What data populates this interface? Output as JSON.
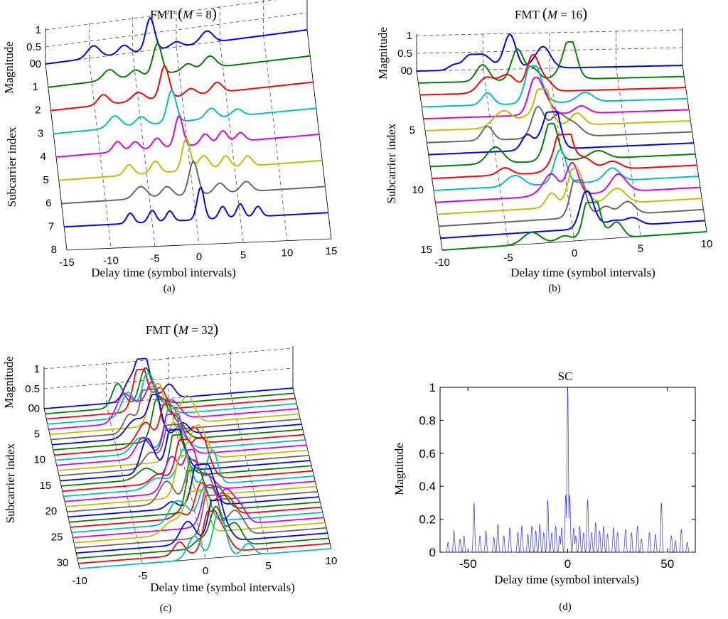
{
  "chart_data": [
    {
      "id": "a",
      "type": "waterfall",
      "title_prefix": "FMT",
      "title_var": "M",
      "title_value": "8",
      "xlabel": "Delay time (symbol intervals)",
      "ylabel": "Subcarrier index",
      "zlabel": "Magnitude",
      "caption": "(a)",
      "xlim": [
        -15,
        15
      ],
      "xticks": [
        "-15",
        "-10",
        "-5",
        "0",
        "5",
        "10",
        "15"
      ],
      "yticks": [
        "0",
        "1",
        "2",
        "3",
        "4",
        "5",
        "6",
        "7",
        "8"
      ],
      "zticks": [
        "1",
        "0.5",
        "0"
      ],
      "series": [
        {
          "name": "0",
          "color": "#0000ff",
          "peaks": [
            [
              -3,
              0.95,
              0.5
            ],
            [
              -9.5,
              0.35,
              0.7
            ],
            [
              -6,
              0.25,
              0.6
            ],
            [
              3.5,
              0.35,
              0.7
            ],
            [
              0,
              0.15,
              0.6
            ]
          ]
        },
        {
          "name": "1",
          "color": "#008000",
          "peaks": [
            [
              -2.5,
              0.9,
              0.5
            ],
            [
              -8,
              0.3,
              0.7
            ],
            [
              3.5,
              0.35,
              0.7
            ],
            [
              -5,
              0.2,
              0.6
            ],
            [
              1,
              0.2,
              0.6
            ]
          ]
        },
        {
          "name": "2",
          "color": "#ff0000",
          "peaks": [
            [
              -2,
              0.95,
              0.5
            ],
            [
              -9,
              0.3,
              0.6
            ],
            [
              -5,
              0.25,
              0.7
            ],
            [
              4,
              0.3,
              0.6
            ],
            [
              1,
              0.2,
              0.6
            ]
          ]
        },
        {
          "name": "3",
          "color": "#00bfbf",
          "peaks": [
            [
              -1.5,
              0.95,
              0.5
            ],
            [
              -8,
              0.35,
              0.7
            ],
            [
              -5,
              0.25,
              0.6
            ],
            [
              3,
              0.3,
              0.6
            ],
            [
              6,
              0.2,
              0.6
            ]
          ]
        },
        {
          "name": "4",
          "color": "#dd00dd",
          "peaks": [
            [
              -1,
              0.9,
              0.45
            ],
            [
              -8,
              0.3,
              0.5
            ],
            [
              -6,
              0.25,
              0.5
            ],
            [
              -3.5,
              0.3,
              0.5
            ],
            [
              2,
              0.3,
              0.5
            ],
            [
              4,
              0.35,
              0.5
            ],
            [
              6,
              0.25,
              0.5
            ]
          ]
        },
        {
          "name": "5",
          "color": "#bfbf00",
          "peaks": [
            [
              -0.5,
              0.95,
              0.45
            ],
            [
              -7,
              0.3,
              0.5
            ],
            [
              -4,
              0.35,
              0.5
            ],
            [
              1.5,
              0.4,
              0.6
            ],
            [
              4,
              0.35,
              0.5
            ],
            [
              6.5,
              0.3,
              0.5
            ]
          ]
        },
        {
          "name": "6",
          "color": "#666666",
          "peaks": [
            [
              0,
              1.0,
              0.5
            ],
            [
              -6,
              0.35,
              0.7
            ],
            [
              -3,
              0.3,
              0.6
            ],
            [
              3,
              0.3,
              0.6
            ],
            [
              6,
              0.3,
              0.6
            ]
          ]
        },
        {
          "name": "7",
          "color": "#0000ff",
          "peaks": [
            [
              0.5,
              0.95,
              0.4
            ],
            [
              -7.5,
              0.3,
              0.4
            ],
            [
              -5,
              0.35,
              0.4
            ],
            [
              -3,
              0.3,
              0.4
            ],
            [
              3,
              0.35,
              0.4
            ],
            [
              5,
              0.4,
              0.4
            ],
            [
              7,
              0.3,
              0.4
            ]
          ]
        }
      ]
    },
    {
      "id": "b",
      "type": "waterfall",
      "title_prefix": "FMT",
      "title_var": "M",
      "title_value": "16",
      "xlabel": "Delay time (symbol intervals)",
      "ylabel": "Subcarrier index",
      "zlabel": "Magnitude",
      "caption": "(b)",
      "xlim": [
        -10,
        10
      ],
      "xticks": [
        "-10",
        "-5",
        "0",
        "5",
        "10"
      ],
      "yticks": [
        "0",
        "5",
        "10",
        "15"
      ],
      "zticks": [
        "1",
        "0.5",
        "0"
      ],
      "colors": [
        "#0000ff",
        "#008000",
        "#ff0000",
        "#00bfbf",
        "#dd00dd",
        "#bfbf00",
        "#666666"
      ],
      "rows": 16
    },
    {
      "id": "c",
      "type": "waterfall",
      "title_prefix": "FMT",
      "title_var": "M",
      "title_value": "32",
      "xlabel": "Delay time (symbol intervals)",
      "ylabel": "Subcarrier index",
      "zlabel": "Magnitude",
      "caption": "(c)",
      "xlim": [
        -10,
        10
      ],
      "xticks": [
        "-10",
        "-5",
        "0",
        "5",
        "10"
      ],
      "yticks": [
        "0",
        "5",
        "10",
        "15",
        "20",
        "25",
        "30"
      ],
      "zticks": [
        "1",
        "0.5",
        "0"
      ],
      "colors": [
        "#0000ff",
        "#008000",
        "#ff0000",
        "#00bfbf",
        "#dd00dd",
        "#bfbf00",
        "#666666"
      ],
      "rows": 32
    },
    {
      "id": "d",
      "type": "line",
      "title": "SC",
      "xlabel": "Delay time (symbol intervals)",
      "ylabel": "Magnitude",
      "caption": "(d)",
      "xlim": [
        -64,
        64
      ],
      "ylim": [
        0,
        1
      ],
      "xticks": [
        "-50",
        "0",
        "50"
      ],
      "yticks": [
        "0",
        "0.2",
        "0.4",
        "0.6",
        "0.8",
        "1"
      ],
      "line_color": "#4444ff",
      "spikes": [
        [
          0,
          1.0
        ],
        [
          -1,
          0.35
        ],
        [
          1,
          0.35
        ],
        [
          -10,
          0.32
        ],
        [
          10,
          0.32
        ],
        [
          -47,
          0.3
        ],
        [
          47,
          0.3
        ],
        [
          -57,
          0.13
        ],
        [
          57,
          0.14
        ],
        [
          -35,
          0.17
        ],
        [
          35,
          0.16
        ],
        [
          -29,
          0.15
        ],
        [
          29,
          0.14
        ],
        [
          -23,
          0.16
        ],
        [
          23,
          0.15
        ],
        [
          -18,
          0.16
        ],
        [
          18,
          0.16
        ],
        [
          -14,
          0.17
        ],
        [
          14,
          0.18
        ],
        [
          -6,
          0.16
        ],
        [
          6,
          0.16
        ],
        [
          -3,
          0.15
        ],
        [
          3,
          0.15
        ],
        [
          -41,
          0.13
        ],
        [
          41,
          0.12
        ],
        [
          -52,
          0.1
        ],
        [
          52,
          0.1
        ],
        [
          -60,
          0.06
        ],
        [
          60,
          0.06
        ],
        [
          -25,
          0.12
        ],
        [
          25,
          0.12
        ],
        [
          -16,
          0.13
        ],
        [
          16,
          0.13
        ],
        [
          -8,
          0.12
        ],
        [
          8,
          0.12
        ],
        [
          -4,
          0.1
        ],
        [
          4,
          0.1
        ],
        [
          -44,
          0.1
        ],
        [
          44,
          0.11
        ],
        [
          -32,
          0.1
        ],
        [
          32,
          0.12
        ],
        [
          -20,
          0.11
        ],
        [
          20,
          0.11
        ],
        [
          -12,
          0.12
        ],
        [
          12,
          0.12
        ],
        [
          -37,
          0.09
        ],
        [
          37,
          0.08
        ],
        [
          -54,
          0.08
        ],
        [
          54,
          0.07
        ]
      ]
    }
  ]
}
